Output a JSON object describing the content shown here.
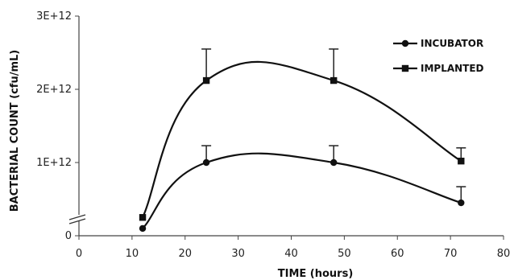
{
  "chart_data": {
    "type": "line",
    "xlabel": "TIME (hours)",
    "ylabel": "BACTERIAL COUNT  (cfu/mL)",
    "xlim": [
      0,
      80
    ],
    "ylim": [
      0,
      3000000000000
    ],
    "x_ticks": [
      0,
      10,
      20,
      30,
      40,
      50,
      60,
      70,
      80
    ],
    "x_tick_labels": [
      "0",
      "10",
      "20",
      "30",
      "40",
      "50",
      "60",
      "70",
      "80"
    ],
    "y_ticks": [
      0,
      1000000000000,
      2000000000000,
      3000000000000
    ],
    "y_tick_labels": [
      "0",
      "1E+12",
      "2E+12",
      "3E+12"
    ],
    "y_axis_break": true,
    "grid": false,
    "legend_position": "top-right",
    "series": [
      {
        "name": "INCUBATOR",
        "marker": "circle",
        "color": "#111111",
        "x": [
          12,
          24,
          48,
          72
        ],
        "y": [
          100000000000,
          1000000000000,
          1000000000000,
          450000000000
        ],
        "err_plus": [
          0,
          230000000000,
          230000000000,
          220000000000
        ]
      },
      {
        "name": "IMPLANTED",
        "marker": "square",
        "color": "#111111",
        "x": [
          12,
          24,
          48,
          72
        ],
        "y": [
          250000000000,
          2120000000000,
          2120000000000,
          1020000000000
        ],
        "err_plus": [
          0,
          430000000000,
          430000000000,
          180000000000
        ]
      }
    ]
  }
}
